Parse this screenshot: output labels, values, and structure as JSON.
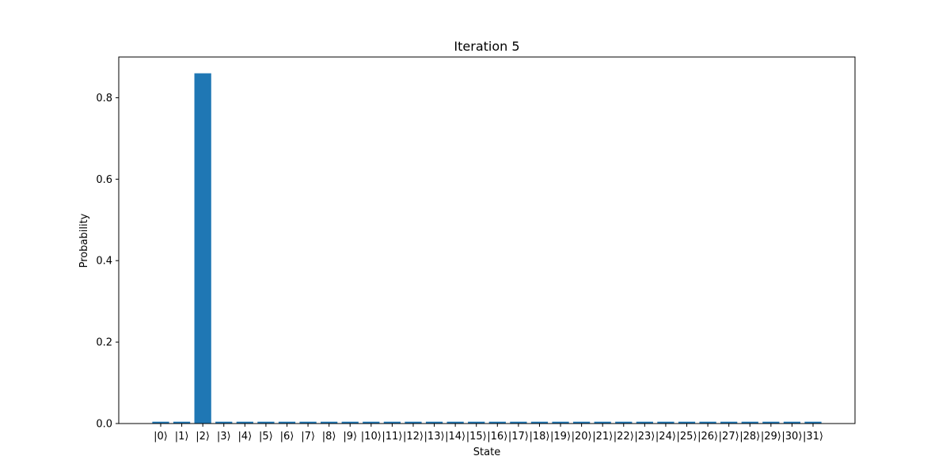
{
  "chart_data": {
    "type": "bar",
    "title": "Iteration 5",
    "xlabel": "State",
    "ylabel": "Probability",
    "ylim": [
      0,
      0.9
    ],
    "yticks": [
      0.0,
      0.2,
      0.4,
      0.6,
      0.8
    ],
    "ytick_labels": [
      "0.0",
      "0.2",
      "0.4",
      "0.6",
      "0.8"
    ],
    "grid": false,
    "bar_color": "#1f77b4",
    "categories": [
      "|0⟩",
      "|1⟩",
      "|2⟩",
      "|3⟩",
      "|4⟩",
      "|5⟩",
      "|6⟩",
      "|7⟩",
      "|8⟩",
      "|9⟩",
      "|10⟩",
      "|11⟩",
      "|12⟩",
      "|13⟩",
      "|14⟩",
      "|15⟩",
      "|16⟩",
      "|17⟩",
      "|18⟩",
      "|19⟩",
      "|20⟩",
      "|21⟩",
      "|22⟩",
      "|23⟩",
      "|24⟩",
      "|25⟩",
      "|26⟩",
      "|27⟩",
      "|28⟩",
      "|29⟩",
      "|30⟩",
      "|31⟩"
    ],
    "values": [
      0.0045,
      0.0045,
      0.86,
      0.0045,
      0.0045,
      0.0045,
      0.0045,
      0.0045,
      0.0045,
      0.0045,
      0.0045,
      0.0045,
      0.0045,
      0.0045,
      0.0045,
      0.0045,
      0.0045,
      0.0045,
      0.0045,
      0.0045,
      0.0045,
      0.0045,
      0.0045,
      0.0045,
      0.0045,
      0.0045,
      0.0045,
      0.0045,
      0.0045,
      0.0045,
      0.0045,
      0.0045
    ]
  }
}
